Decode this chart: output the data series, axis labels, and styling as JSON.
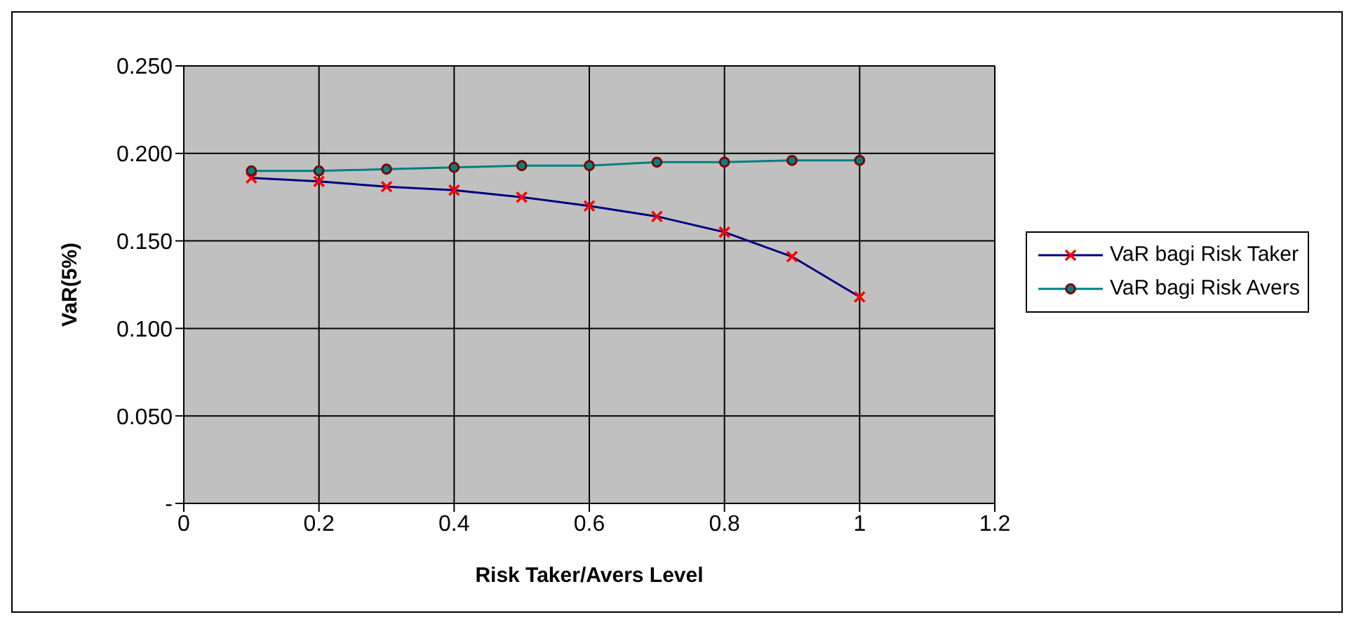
{
  "chart_data": {
    "type": "line",
    "xlabel": "Risk Taker/Avers Level",
    "ylabel": "VaR(5%)",
    "x": [
      0.1,
      0.2,
      0.3,
      0.4,
      0.5,
      0.6,
      0.7,
      0.8,
      0.9,
      1
    ],
    "series": [
      {
        "name": "VaR bagi Risk Taker",
        "color": "#000080",
        "marker": "cross",
        "values": [
          0.186,
          0.184,
          0.181,
          0.179,
          0.175,
          0.17,
          0.164,
          0.155,
          0.141,
          0.118
        ]
      },
      {
        "name": "VaR bagi Risk Avers",
        "color": "#008080",
        "marker": "circle",
        "values": [
          0.19,
          0.19,
          0.191,
          0.192,
          0.193,
          0.193,
          0.195,
          0.195,
          0.196,
          0.196
        ]
      }
    ],
    "xlim": [
      0,
      1.2
    ],
    "xticks": [
      0,
      0.2,
      0.4,
      0.6,
      0.8,
      1,
      1.2
    ],
    "ylim": [
      0,
      0.25
    ],
    "yticks": [
      {
        "value": 0,
        "label": "-"
      },
      {
        "value": 0.05,
        "label": "0.050"
      },
      {
        "value": 0.1,
        "label": "0.100"
      },
      {
        "value": 0.15,
        "label": "0.150"
      },
      {
        "value": 0.2,
        "label": "0.200"
      },
      {
        "value": 0.25,
        "label": "0.250"
      }
    ],
    "grid": true,
    "legend": "right",
    "line_style": "solid"
  }
}
